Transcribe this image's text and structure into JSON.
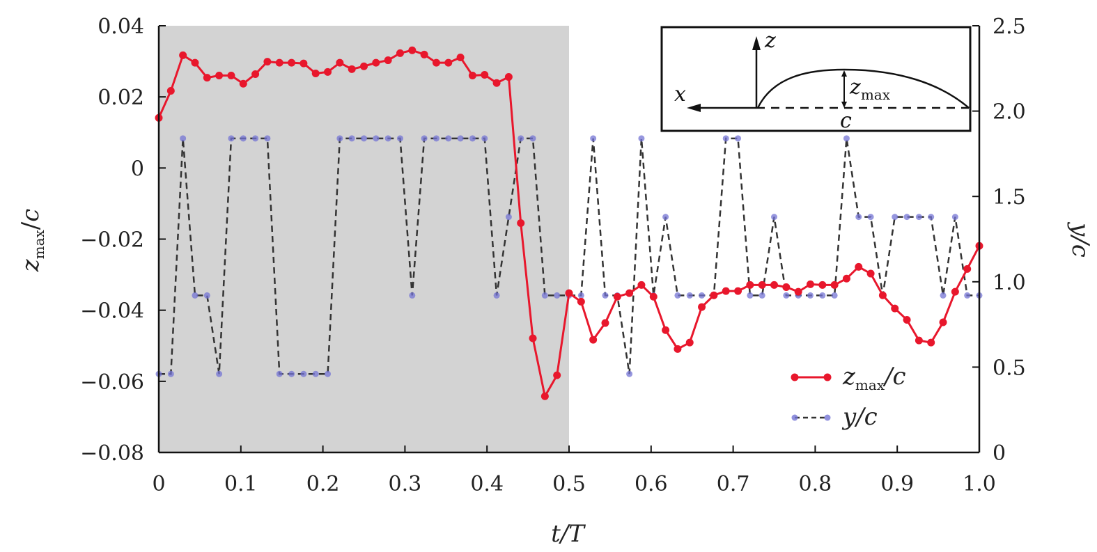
{
  "chart_data": {
    "type": "line",
    "title": "",
    "xlabel": "t/T",
    "ylabel_left": "z_max/c",
    "ylabel_right": "y/c",
    "xlim": [
      0,
      1.0
    ],
    "ylim_left": [
      -0.08,
      0.04
    ],
    "ylim_right": [
      0,
      2.5
    ],
    "x_ticks": [
      "0",
      "0.1",
      "0.2",
      "0.3",
      "0.4",
      "0.5",
      "0.6",
      "0.7",
      "0.8",
      "0.9",
      "1.0"
    ],
    "y_left_ticks": [
      "0.04",
      "0.02",
      "0",
      "−0.02",
      "−0.04",
      "−0.06",
      "−0.08"
    ],
    "y_right_ticks": [
      "2.5",
      "2.0",
      "1.5",
      "1.0",
      "0.5",
      "0"
    ],
    "shaded_region": [
      0,
      0.5
    ],
    "grid": false,
    "legend_position": "bottom-right",
    "legend": [
      {
        "main": "z",
        "sub": "max",
        "tail": "/c"
      },
      {
        "main": "y",
        "sub": "",
        "tail": "/c"
      }
    ],
    "x_step": 0.014706,
    "series": [
      {
        "name": "z_max/c",
        "axis": "left",
        "color": "#e8172c",
        "style": "solid-markers",
        "values": [
          0.0141,
          0.0217,
          0.0317,
          0.0296,
          0.0254,
          0.026,
          0.026,
          0.0237,
          0.0264,
          0.0299,
          0.0296,
          0.0296,
          0.0294,
          0.0266,
          0.027,
          0.0296,
          0.0278,
          0.0286,
          0.0296,
          0.0303,
          0.0323,
          0.0331,
          0.0319,
          0.0296,
          0.0296,
          0.0311,
          0.026,
          0.0262,
          0.0239,
          0.0256,
          -0.0155,
          -0.0479,
          -0.0642,
          -0.0583,
          -0.0352,
          -0.0376,
          -0.0483,
          -0.0436,
          -0.0362,
          -0.0352,
          -0.0329,
          -0.0362,
          -0.0456,
          -0.0509,
          -0.0491,
          -0.0391,
          -0.0358,
          -0.0346,
          -0.0346,
          -0.0329,
          -0.0329,
          -0.0329,
          -0.0335,
          -0.0348,
          -0.0327,
          -0.0329,
          -0.0329,
          -0.0311,
          -0.0278,
          -0.0297,
          -0.0358,
          -0.0395,
          -0.0427,
          -0.0485,
          -0.0491,
          -0.0434,
          -0.0348,
          -0.0284,
          -0.0219
        ]
      },
      {
        "name": "y/c",
        "axis": "right",
        "color": "#7474d4",
        "line_color": "#333333",
        "style": "dashed-markers",
        "values": [
          0.46,
          0.46,
          1.84,
          0.92,
          0.92,
          0.46,
          1.84,
          1.84,
          1.84,
          1.84,
          0.46,
          0.46,
          0.46,
          0.46,
          0.46,
          1.84,
          1.84,
          1.84,
          1.84,
          1.84,
          1.84,
          0.92,
          1.84,
          1.84,
          1.84,
          1.84,
          1.84,
          1.84,
          0.92,
          1.38,
          1.84,
          1.84,
          0.92,
          0.92,
          0.92,
          0.92,
          1.84,
          0.92,
          0.92,
          0.46,
          1.84,
          0.92,
          1.38,
          0.92,
          0.92,
          0.92,
          0.92,
          1.84,
          1.84,
          0.92,
          0.92,
          1.38,
          0.92,
          0.92,
          0.92,
          0.92,
          0.92,
          1.84,
          1.38,
          1.38,
          0.92,
          1.38,
          1.38,
          1.38,
          1.38,
          0.92,
          1.38,
          0.92,
          0.92
        ]
      }
    ],
    "inset": {
      "z_label": "z",
      "x_label": "x",
      "zmax_label": "z",
      "zmax_sub": "max",
      "c_label": "c"
    }
  }
}
